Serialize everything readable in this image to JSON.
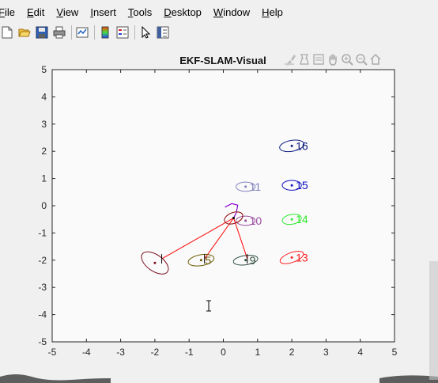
{
  "menu": {
    "items": [
      "File",
      "Edit",
      "View",
      "Insert",
      "Tools",
      "Desktop",
      "Window",
      "Help"
    ],
    "underline": [
      "F",
      "E",
      "V",
      "I",
      "T",
      "D",
      "W",
      "H"
    ]
  },
  "toolbar": {
    "icons": [
      "new-figure-icon",
      "open-file-icon",
      "save-icon",
      "print-icon",
      "link-plot-icon",
      "insert-colorbar-icon",
      "insert-legend-icon",
      "edit-plot-icon",
      "property-inspector-icon"
    ]
  },
  "axes_toolbar": {
    "icons": [
      "brush-icon",
      "data-tip-icon",
      "rotate-icon",
      "pan-icon",
      "zoom-in-icon",
      "zoom-out-icon",
      "home-icon"
    ]
  },
  "chart_data": {
    "type": "scatter",
    "title": "EKF-SLAM-Visual",
    "xlim": [
      -5,
      5
    ],
    "ylim": [
      -5,
      5
    ],
    "xticks": [
      -5,
      -4,
      -3,
      -2,
      -1,
      0,
      1,
      2,
      3,
      4,
      5
    ],
    "yticks": [
      -5,
      -4,
      -3,
      -2,
      -1,
      0,
      1,
      2,
      3,
      4,
      5
    ],
    "grid": false,
    "robot": {
      "x": 0.3,
      "y": -0.45,
      "rx": 0.28,
      "ry": 0.2,
      "rot": -20,
      "color": "#8b0000"
    },
    "trajectory": [
      [
        0.05,
        -0.05
      ],
      [
        0.25,
        0.08
      ],
      [
        0.42,
        0.02
      ],
      [
        0.38,
        -0.25
      ],
      [
        0.3,
        -0.45
      ]
    ],
    "trajectory_color": "#8800cc",
    "observations": [
      [
        -1.8,
        -1.95
      ],
      [
        -0.55,
        -1.95
      ],
      [
        0.7,
        -1.95
      ]
    ],
    "landmarks": [
      {
        "label": "",
        "x": -2.0,
        "y": -2.1,
        "rx": 0.45,
        "ry": 0.3,
        "rot": 35,
        "color": "#7a1020"
      },
      {
        "label": "5",
        "x": -0.65,
        "y": -2.0,
        "rx": 0.38,
        "ry": 0.2,
        "rot": -10,
        "color": "#6b5a00"
      },
      {
        "label": "9",
        "x": 0.65,
        "y": -2.0,
        "rx": 0.36,
        "ry": 0.17,
        "rot": -8,
        "color": "#2f4f3f"
      },
      {
        "label": "13",
        "x": 2.0,
        "y": -1.9,
        "rx": 0.36,
        "ry": 0.18,
        "rot": -20,
        "color": "#ff2020"
      },
      {
        "label": "10",
        "x": 0.65,
        "y": -0.55,
        "rx": 0.28,
        "ry": 0.17,
        "rot": 0,
        "color": "#9a4fa0"
      },
      {
        "label": "14",
        "x": 2.0,
        "y": -0.5,
        "rx": 0.28,
        "ry": 0.18,
        "rot": -10,
        "color": "#2ee82e"
      },
      {
        "label": "11",
        "x": 0.65,
        "y": 0.7,
        "rx": 0.28,
        "ry": 0.17,
        "rot": 0,
        "color": "#8080c0"
      },
      {
        "label": "15",
        "x": 2.0,
        "y": 0.75,
        "rx": 0.28,
        "ry": 0.18,
        "rot": 0,
        "color": "#1010c0"
      },
      {
        "label": "16",
        "x": 2.0,
        "y": 2.2,
        "rx": 0.36,
        "ry": 0.2,
        "rot": -10,
        "color": "#102080"
      }
    ]
  }
}
